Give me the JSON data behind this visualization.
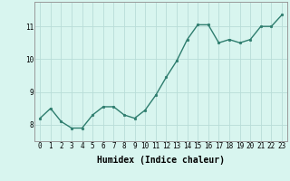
{
  "title": "",
  "xlabel": "Humidex (Indice chaleur)",
  "x": [
    0,
    1,
    2,
    3,
    4,
    5,
    6,
    7,
    8,
    9,
    10,
    11,
    12,
    13,
    14,
    15,
    16,
    17,
    18,
    19,
    20,
    21,
    22,
    23
  ],
  "y": [
    8.2,
    8.5,
    8.1,
    7.9,
    7.9,
    8.3,
    8.55,
    8.55,
    8.3,
    8.2,
    8.45,
    8.9,
    9.45,
    9.95,
    10.6,
    11.05,
    11.05,
    10.5,
    10.6,
    10.5,
    10.6,
    11.0,
    11.0,
    11.35
  ],
  "line_color": "#2e7d6e",
  "marker": "o",
  "marker_size": 1.8,
  "bg_color": "#d8f5ef",
  "grid_color": "#b8ddd8",
  "tick_label_fontsize": 5.5,
  "xlabel_fontsize": 7,
  "ylim": [
    7.5,
    11.75
  ],
  "yticks": [
    8,
    9,
    10,
    11
  ],
  "line_width": 1.0
}
